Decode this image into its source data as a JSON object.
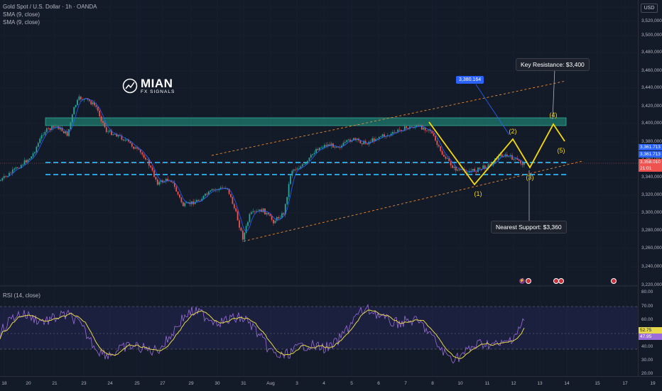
{
  "legend": {
    "symbol": "Gold Spot / U.S. Dollar · 1h · OANDA",
    "ind1": "SMA (9, close)",
    "ind2": "SMA (9, close)",
    "rsi": "RSI (14, close)"
  },
  "currency_button": "USD",
  "logo": {
    "name": "MIAN",
    "tagline": "FX SIGNALS"
  },
  "price_ticks": [
    "3,540.000",
    "3,520,000",
    "3,500,000",
    "3,480,000",
    "3,460,000",
    "3,440,000",
    "3,420,000",
    "3,400,000",
    "3,380,000",
    "3,360,000",
    "3,340,000",
    "3,320,000",
    "3,300,000",
    "3,280,000",
    "3,260,000",
    "3,240,000",
    "3,220,000"
  ],
  "rsi_ticks": [
    "80.00",
    "70.00",
    "60.00",
    "40.00",
    "30.00",
    "20.00"
  ],
  "price_badges": {
    "b1": "3,361.713",
    "b2": "3,361.713",
    "b3": "3,358.010",
    "b4": "21:01",
    "rsi1": "52.75",
    "rsi2": "47.95"
  },
  "time_ticks": [
    "18",
    "20",
    "21",
    "23",
    "24",
    "25",
    "27",
    "29",
    "30",
    "31",
    "Aug",
    "3",
    "4",
    "5",
    "6",
    "7",
    "8",
    "10",
    "11",
    "12",
    "13",
    "14",
    "15",
    "17",
    "19",
    "20"
  ],
  "annotations": {
    "resistance": "Key Resistance: $3,400",
    "support": "Nearest Support: $3,360",
    "blue_price": "3,380.164"
  },
  "waves": [
    "(1)",
    "(2)",
    "(3)",
    "(4)",
    "(5)"
  ],
  "colors": {
    "bg": "#131a28",
    "up": "#26a69a",
    "down": "#ef5350",
    "wave": "#f5d90a",
    "level": "#29b6f6",
    "zone": "#1e7a6e"
  }
}
